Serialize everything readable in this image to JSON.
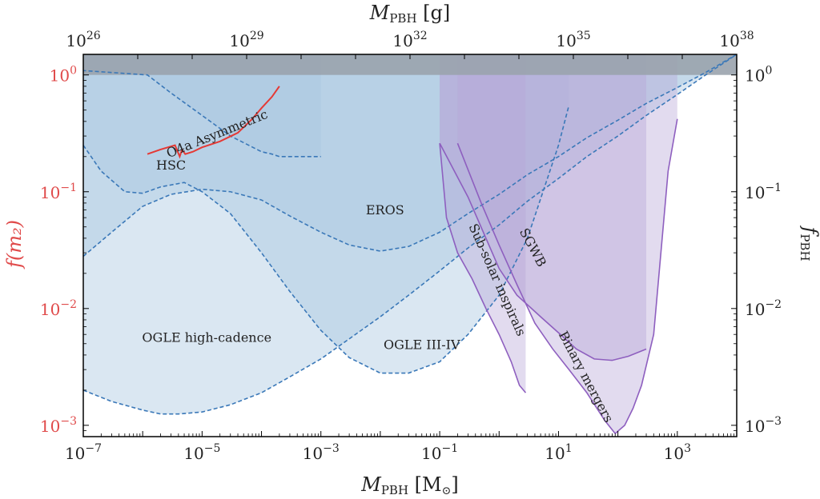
{
  "chart_data": {
    "type": "area",
    "xscale": "log",
    "yscale": "log",
    "xlim": [
      1e-07,
      10000
    ],
    "ylim": [
      0.0008,
      1.5
    ],
    "x2lim": [
      1e+26,
      1e+38
    ],
    "xlabel_main": "M",
    "xlabel_sub": "PBH",
    "xlabel_unit_open": " [M",
    "xlabel_unit_sym": "⊙",
    "xlabel_unit_close": "]",
    "x2label_main": "M",
    "x2label_sub": "PBH",
    "x2label_unit": " [g]",
    "ylabel_left": "f(m₂)",
    "ylabel_right_main": "f",
    "ylabel_right_sub": "PBH",
    "x_ticks": [
      {
        "b": "10",
        "e": "−7",
        "v": 1e-07
      },
      {
        "b": "10",
        "e": "−5",
        "v": 1e-05
      },
      {
        "b": "10",
        "e": "−3",
        "v": 0.001
      },
      {
        "b": "10",
        "e": "−1",
        "v": 0.1
      },
      {
        "b": "10",
        "e": "1",
        "v": 10
      },
      {
        "b": "10",
        "e": "3",
        "v": 1000
      }
    ],
    "x2_ticks": [
      {
        "b": "10",
        "e": "26",
        "v": 1e+26
      },
      {
        "b": "10",
        "e": "29",
        "v": 1e+29
      },
      {
        "b": "10",
        "e": "32",
        "v": 1e+32
      },
      {
        "b": "10",
        "e": "35",
        "v": 1e+35
      },
      {
        "b": "10",
        "e": "38",
        "v": 1e+38
      }
    ],
    "y_ticks": [
      {
        "b": "10",
        "e": "0",
        "v": 1
      },
      {
        "b": "10",
        "e": "−1",
        "v": 0.1
      },
      {
        "b": "10",
        "e": "−2",
        "v": 0.01
      },
      {
        "b": "10",
        "e": "−3",
        "v": 0.001
      }
    ],
    "grid": false,
    "colors": {
      "red": "#e53935",
      "blue_line": "#3a78b8",
      "blue_fill": "#a8c6e0",
      "purple_line": "#8e5fbf",
      "purple_fill": "#b7a4d8",
      "top_band": "#9aa3ad"
    },
    "series": [
      {
        "name": "OGLE high-cadence",
        "kind": "blue",
        "x": [
          1e-07,
          3e-07,
          1e-06,
          2e-06,
          4e-06,
          1e-05,
          3e-05,
          0.0001,
          0.0003,
          0.001,
          0.003,
          0.01,
          0.03,
          0.1,
          0.3,
          1,
          3,
          10,
          30,
          100,
          300,
          1000,
          3000,
          10000
        ],
        "y": [
          0.002,
          0.0016,
          0.00135,
          0.00125,
          0.00125,
          0.0013,
          0.0015,
          0.0019,
          0.0026,
          0.0037,
          0.0055,
          0.0085,
          0.013,
          0.021,
          0.033,
          0.052,
          0.083,
          0.13,
          0.2,
          0.3,
          0.45,
          0.68,
          1.0,
          1.5
        ]
      },
      {
        "name": "OGLE III-IV",
        "kind": "blue",
        "x": [
          1e-07,
          2e-07,
          5e-07,
          1e-06,
          2e-06,
          5e-06,
          1e-05,
          3e-05,
          0.0001,
          0.0003,
          0.001,
          0.003,
          0.01,
          0.03,
          0.1,
          0.3,
          1,
          3,
          10,
          15
        ],
        "y": [
          0.25,
          0.15,
          0.1,
          0.097,
          0.11,
          0.12,
          0.1,
          0.065,
          0.03,
          0.014,
          0.0065,
          0.0038,
          0.0028,
          0.0028,
          0.0035,
          0.006,
          0.013,
          0.04,
          0.25,
          0.55
        ]
      },
      {
        "name": "EROS",
        "kind": "blue",
        "x": [
          1e-07,
          3e-07,
          1e-06,
          3e-06,
          1e-05,
          3e-05,
          0.0001,
          0.0003,
          0.001,
          0.003,
          0.01,
          0.03,
          0.1,
          0.3,
          1,
          3,
          10,
          30,
          100,
          300,
          1000,
          3000,
          10000
        ],
        "y": [
          0.028,
          0.045,
          0.075,
          0.095,
          0.105,
          0.1,
          0.085,
          0.062,
          0.045,
          0.035,
          0.031,
          0.034,
          0.045,
          0.065,
          0.095,
          0.14,
          0.2,
          0.29,
          0.41,
          0.57,
          0.78,
          1.05,
          1.5
        ]
      },
      {
        "name": "HSC",
        "kind": "blue",
        "x": [
          1e-11,
          1.2e-06,
          3e-06,
          1e-05,
          3e-05,
          0.0001,
          0.00015,
          0.0002,
          0.001
        ],
        "y": [
          1.5,
          1.0,
          0.7,
          0.45,
          0.3,
          0.22,
          0.21,
          0.2,
          0.2
        ]
      },
      {
        "name": "O4a Asymmetric",
        "kind": "red",
        "x": [
          1.2e-06,
          2e-06,
          3.5e-06,
          4.2e-06,
          4.6e-06,
          5.2e-06,
          7e-06,
          1e-05,
          2e-05,
          4e-05,
          7e-05,
          0.0001,
          0.00015,
          0.0002
        ],
        "y": [
          0.21,
          0.23,
          0.25,
          0.2,
          0.23,
          0.21,
          0.22,
          0.24,
          0.27,
          0.32,
          0.42,
          0.52,
          0.65,
          0.8
        ]
      },
      {
        "name": "Sub-solar inspirals",
        "kind": "purple",
        "x": [
          0.1,
          0.13,
          0.2,
          0.35,
          0.6,
          1,
          1.6,
          2.2,
          2.8
        ],
        "y": [
          0.26,
          0.06,
          0.03,
          0.018,
          0.01,
          0.006,
          0.0035,
          0.0022,
          0.0019
        ],
        "band_top": 1.0
      },
      {
        "name": "SGWB",
        "kind": "purple",
        "x": [
          0.1,
          0.3,
          0.6,
          1,
          2,
          5,
          10,
          20,
          40,
          80,
          150,
          300
        ],
        "y": [
          0.26,
          0.09,
          0.04,
          0.022,
          0.013,
          0.0085,
          0.0062,
          0.0045,
          0.0037,
          0.0036,
          0.0039,
          0.0045
        ],
        "band_top": 1.0
      },
      {
        "name": "Binary mergers",
        "kind": "purple",
        "x": [
          0.2,
          0.5,
          1,
          2,
          4,
          8,
          15,
          30,
          60,
          90,
          130,
          180,
          250,
          400,
          700,
          1000
        ],
        "y": [
          0.26,
          0.08,
          0.035,
          0.016,
          0.0075,
          0.0045,
          0.003,
          0.0019,
          0.0011,
          0.00085,
          0.001,
          0.0014,
          0.0022,
          0.006,
          0.15,
          0.42
        ],
        "band_top": 1.0
      }
    ],
    "annotations": [
      {
        "text": "HSC"
      },
      {
        "text": "O4a Asymmetric"
      },
      {
        "text": "EROS"
      },
      {
        "text": "OGLE high-cadence"
      },
      {
        "text": "OGLE III-IV"
      },
      {
        "text": "Sub-solar inspirals"
      },
      {
        "text": "SGWB"
      },
      {
        "text": "Binary mergers"
      }
    ]
  }
}
